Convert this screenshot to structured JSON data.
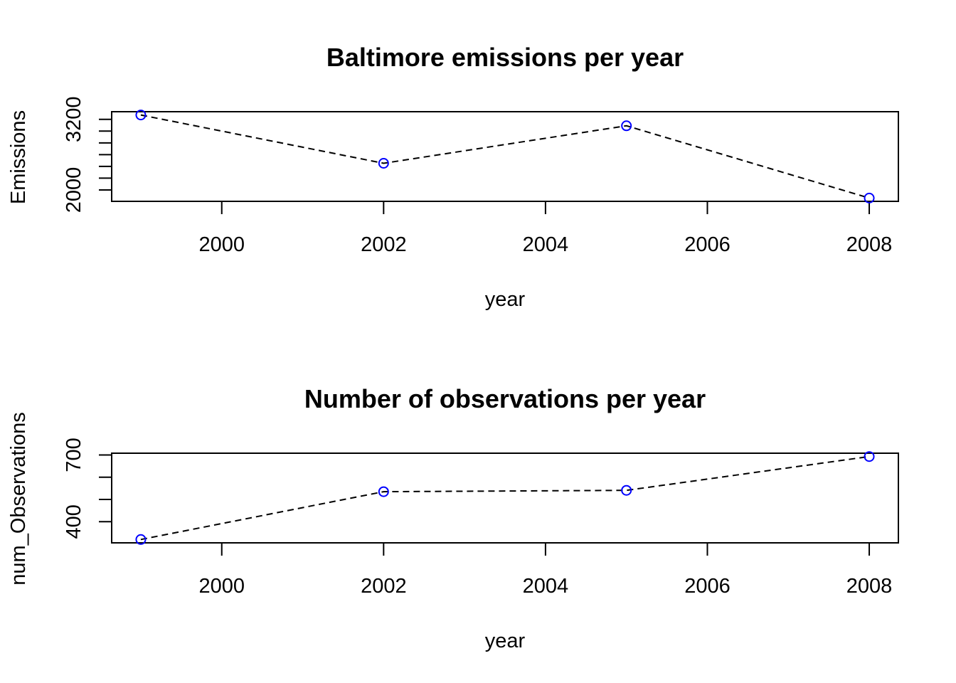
{
  "chart_data": [
    {
      "type": "line",
      "title": "Baltimore emissions per year",
      "xlabel": "year",
      "ylabel": "Emissions",
      "x": [
        1999,
        2002,
        2005,
        2008
      ],
      "series": [
        {
          "values": [
            3274,
            2453,
            3091,
            1862
          ]
        }
      ],
      "xlim": [
        1998.64,
        2008.36
      ],
      "ylim": [
        1806,
        3330
      ],
      "xticks": [
        2000,
        2002,
        2004,
        2006,
        2008
      ],
      "yticks_labeled": [
        2000,
        3200
      ],
      "yticks": [
        2000,
        2200,
        2400,
        2600,
        2800,
        3000,
        3200
      ],
      "line_style": "dashed",
      "marker": "open-circle",
      "marker_color": "#0000ff",
      "line_color": "#000000",
      "grid": false
    },
    {
      "type": "line",
      "title": "Number of observations per year",
      "xlabel": "year",
      "ylabel": "num_Observations",
      "x": [
        1999,
        2002,
        2005,
        2008
      ],
      "series": [
        {
          "values": [
            320,
            535,
            541,
            693
          ]
        }
      ],
      "xlim": [
        1998.64,
        2008.36
      ],
      "ylim": [
        305,
        708
      ],
      "xticks": [
        2000,
        2002,
        2004,
        2006,
        2008
      ],
      "yticks_labeled": [
        400,
        700
      ],
      "yticks": [
        400,
        500,
        600,
        700
      ],
      "line_style": "dashed",
      "marker": "open-circle",
      "marker_color": "#0000ff",
      "line_color": "#000000",
      "grid": false
    }
  ]
}
